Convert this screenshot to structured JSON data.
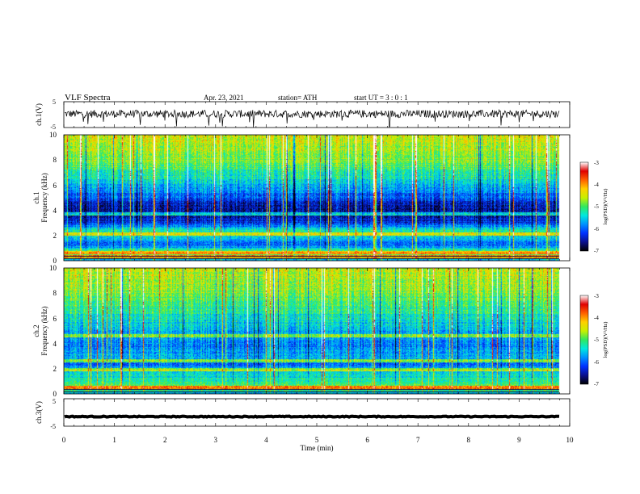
{
  "header": {
    "title": "VLF Spectra",
    "date": "Apr. 23, 2021",
    "station": "station= ATH",
    "start": "start UT = 3 : 0 : 1"
  },
  "colors": {
    "colormap": [
      "#000000",
      "#0a0f8c",
      "#0030ff",
      "#0090ff",
      "#00e8e0",
      "#30e860",
      "#c8f000",
      "#ffd000",
      "#ff6000",
      "#e00000",
      "#ffffff"
    ],
    "trace": "#000000"
  },
  "colorbar": {
    "label": "log(PSD)(V²/Hz)",
    "ticks": [
      "-3",
      "-4",
      "-5",
      "-6",
      "-7"
    ]
  },
  "chart_data": [
    {
      "type": "line",
      "name": "ch1-waveform",
      "ylabel": "ch.1(V)",
      "ylim": [
        -5,
        5
      ],
      "yticks": [
        "5",
        "-5"
      ],
      "xlim": [
        0,
        10
      ],
      "baseline": 0.3,
      "noise_amplitude": 1.5,
      "spikes_to": -5,
      "duration_min": 9.8
    },
    {
      "type": "heatmap",
      "name": "ch1-spectrogram",
      "ylabel_top": "ch.1",
      "ylabel": "Frequency (kHz)",
      "ylim": [
        0,
        10
      ],
      "yticks": [
        "0",
        "2",
        "4",
        "6",
        "8",
        "10"
      ],
      "xlim": [
        0,
        10
      ],
      "duration_min": 9.8,
      "profile": [
        {
          "f": 0.0,
          "v": 0.35
        },
        {
          "f": 0.4,
          "v": 0.55
        },
        {
          "f": 0.8,
          "v": 0.45
        },
        {
          "f": 1.2,
          "v": 0.25
        },
        {
          "f": 1.8,
          "v": 0.35
        },
        {
          "f": 2.3,
          "v": 0.45
        },
        {
          "f": 3.0,
          "v": 0.18
        },
        {
          "f": 4.2,
          "v": 0.12
        },
        {
          "f": 5.0,
          "v": 0.22
        },
        {
          "f": 6.5,
          "v": 0.42
        },
        {
          "f": 8.0,
          "v": 0.55
        },
        {
          "f": 10.0,
          "v": 0.62
        }
      ],
      "bright_bands_khz": [
        0.3,
        0.6,
        2.1,
        3.7
      ]
    },
    {
      "type": "heatmap",
      "name": "ch2-spectrogram",
      "ylabel_top": "ch.2",
      "ylabel": "Frequency (kHz)",
      "ylim": [
        0,
        10
      ],
      "yticks": [
        "0",
        "2",
        "4",
        "6",
        "8",
        "10"
      ],
      "xlim": [
        0,
        10
      ],
      "duration_min": 9.8,
      "profile": [
        {
          "f": 0.0,
          "v": 0.35
        },
        {
          "f": 0.5,
          "v": 0.55
        },
        {
          "f": 1.0,
          "v": 0.45
        },
        {
          "f": 1.6,
          "v": 0.4
        },
        {
          "f": 2.3,
          "v": 0.25
        },
        {
          "f": 3.0,
          "v": 0.35
        },
        {
          "f": 4.0,
          "v": 0.28
        },
        {
          "f": 5.0,
          "v": 0.35
        },
        {
          "f": 6.5,
          "v": 0.45
        },
        {
          "f": 8.0,
          "v": 0.55
        },
        {
          "f": 10.0,
          "v": 0.62
        }
      ],
      "bright_bands_khz": [
        0.5,
        1.9,
        2.6,
        4.6
      ]
    },
    {
      "type": "line",
      "name": "ch3-waveform",
      "ylabel": "ch.3(V)",
      "ylim": [
        -5,
        5
      ],
      "yticks": [
        "5",
        "-5"
      ],
      "xlim": [
        0,
        10
      ],
      "baseline": -1.5,
      "noise_amplitude": 0.15,
      "duration_min": 9.8
    },
    {
      "type": "axis",
      "name": "time-axis",
      "xlabel": "Time (min)",
      "xlim": [
        0,
        10
      ],
      "xticks": [
        "0",
        "1",
        "2",
        "3",
        "4",
        "5",
        "6",
        "7",
        "8",
        "9",
        "10"
      ]
    }
  ]
}
